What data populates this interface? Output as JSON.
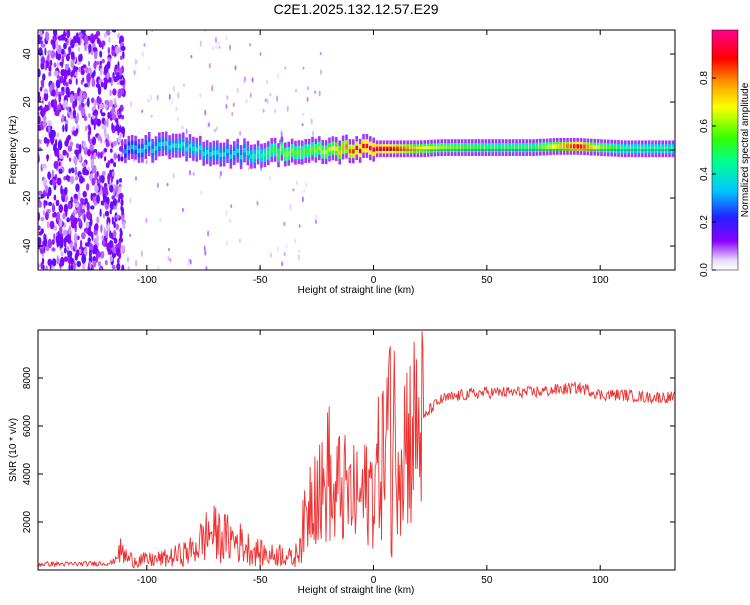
{
  "title": "C2E1.2025.132.12.57.E29",
  "chart_data": [
    {
      "type": "heatmap",
      "xlabel": "Height of straight line (km)",
      "ylabel": "Frequency (Hz)",
      "xlim": [
        -148,
        133
      ],
      "ylim": [
        -50,
        50
      ],
      "xticks": [
        -100,
        -50,
        0,
        50,
        100
      ],
      "yticks": [
        -40,
        -20,
        0,
        20,
        40
      ],
      "colorbar": {
        "label": "Normalized spectral amplitude",
        "range": [
          0,
          1
        ],
        "ticks": [
          "0.0",
          "0.2",
          "0.4",
          "0.6",
          "0.8"
        ]
      },
      "ridge": {
        "x": [
          -110,
          -100,
          -90,
          -80,
          -70,
          -60,
          -50,
          -40,
          -30,
          -20,
          -10,
          0,
          10,
          20,
          30,
          40,
          50,
          60,
          70,
          80,
          90,
          100,
          110,
          120,
          133
        ],
        "frequency": [
          0,
          1,
          1.5,
          0.5,
          -1,
          -1.5,
          -1.5,
          -0.5,
          -1,
          0,
          0.5,
          0.5,
          0.5,
          0.5,
          1,
          1,
          1,
          1,
          1,
          1.5,
          1.5,
          1,
          0.5,
          0.5,
          0.5
        ],
        "amplitude": [
          0.3,
          0.35,
          0.38,
          0.4,
          0.38,
          0.36,
          0.45,
          0.6,
          0.55,
          0.65,
          0.85,
          0.95,
          0.85,
          0.7,
          0.6,
          0.55,
          0.5,
          0.5,
          0.5,
          0.7,
          0.9,
          0.6,
          0.45,
          0.45,
          0.45
        ]
      },
      "noise_region": {
        "from": -148,
        "to": -110
      }
    },
    {
      "type": "line",
      "xlabel": "Height of straight line (km)",
      "ylabel": "SNR (10 * v/v)",
      "xlim": [
        -148,
        133
      ],
      "ylim": [
        0,
        10000
      ],
      "xticks": [
        -100,
        -50,
        0,
        50,
        100
      ],
      "yticks": [
        2000,
        4000,
        6000,
        8000
      ],
      "series": [
        {
          "color": "#f03030",
          "x": [
            -148,
            -130,
            -115,
            -112,
            -108,
            -100,
            -90,
            -80,
            -72,
            -68,
            -60,
            -55,
            -50,
            -45,
            -40,
            -35,
            -30,
            -26,
            -22,
            -20,
            -18,
            -15,
            -10,
            -5,
            0,
            5,
            7,
            10,
            15,
            20,
            25,
            30,
            40,
            50,
            60,
            70,
            80,
            90,
            95,
            100,
            110,
            120,
            133
          ],
          "values": [
            250,
            250,
            300,
            800,
            450,
            400,
            500,
            800,
            1600,
            1400,
            1200,
            900,
            700,
            600,
            700,
            400,
            2000,
            4000,
            3000,
            4500,
            2500,
            3500,
            3000,
            3000,
            3500,
            5000,
            6500,
            5500,
            5600,
            6000,
            6700,
            7100,
            7300,
            7400,
            7400,
            7400,
            7500,
            7600,
            7500,
            7300,
            7300,
            7200,
            7200
          ]
        }
      ]
    }
  ]
}
